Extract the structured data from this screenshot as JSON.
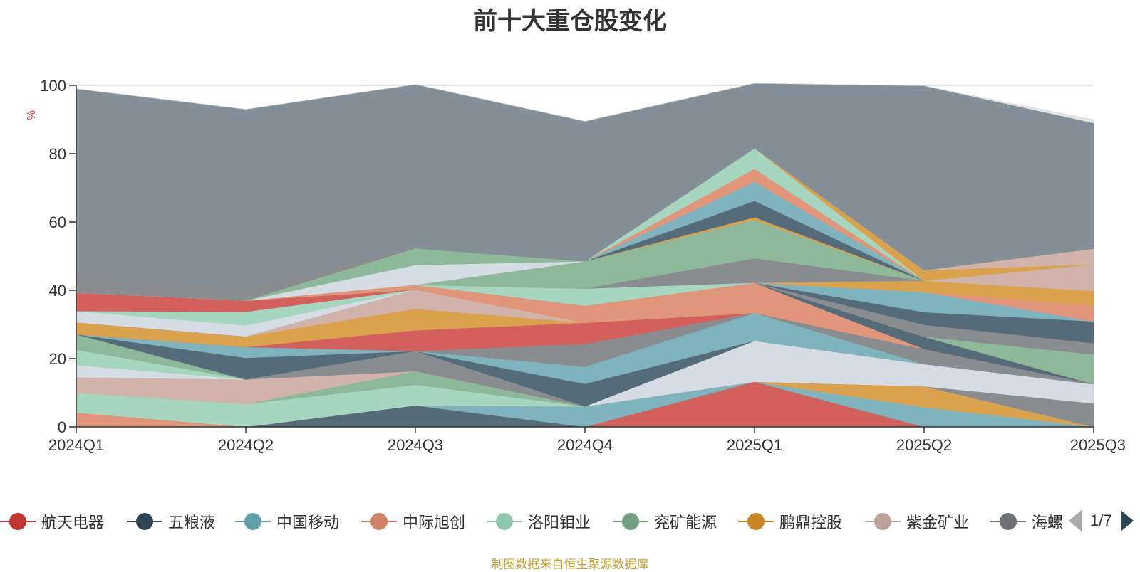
{
  "chart_data": {
    "type": "area",
    "stacked": true,
    "title": "前十大重仓股变化",
    "ylabel": "%",
    "xlabel": "",
    "ylim": [
      0,
      100
    ],
    "yticks": [
      "0",
      "20",
      "40",
      "60",
      "80",
      "100"
    ],
    "categories": [
      "2024Q1",
      "2024Q2",
      "2024Q3",
      "2024Q4",
      "2025Q1",
      "2025Q2",
      "2025Q3"
    ],
    "grid": true,
    "legend_position": "bottom",
    "series": [
      {
        "name": "航天电器",
        "color": "#d4605e",
        "values": [
          0,
          0,
          0,
          0,
          13.2,
          0,
          0
        ]
      },
      {
        "name": "五粮液",
        "color": "#566b7a",
        "values": [
          0,
          0,
          6.3,
          0,
          0,
          0,
          0
        ]
      },
      {
        "name": "中国移动",
        "color": "#7fb3bd",
        "values": [
          0,
          0,
          0,
          6.0,
          0,
          5.8,
          0
        ]
      },
      {
        "name": "中际旭创",
        "color": "#e1967c",
        "values": [
          4.2,
          0,
          0,
          0,
          0,
          0,
          0
        ]
      },
      {
        "name": "洛阳钼业",
        "color": "#a6d6c0",
        "values": [
          5.8,
          6.7,
          6.0,
          0,
          0,
          0,
          0
        ]
      },
      {
        "name": "兖矿能源",
        "color": "#8db89a",
        "values": [
          0,
          0,
          4.0,
          0,
          0,
          0,
          0
        ]
      },
      {
        "name": "鹏鼎控股",
        "color": "#dba24e",
        "values": [
          0,
          0,
          0,
          0,
          0,
          6.1,
          0
        ]
      },
      {
        "name": "紫金矿业",
        "color": "#d2b3ab",
        "values": [
          4.5,
          7.2,
          0,
          0,
          0,
          0,
          0
        ]
      },
      {
        "name": "海螺水泥",
        "color": "#8a8d90",
        "values": [
          0,
          0,
          5.9,
          0,
          0,
          0,
          6.9
        ]
      },
      {
        "name": "",
        "color": "#d6dce3",
        "values": [
          3.6,
          0,
          0,
          0,
          12.0,
          6.5,
          5.6
        ]
      },
      {
        "name": "",
        "color": "#a6d6c0",
        "values": [
          4.5,
          0,
          0,
          0,
          0,
          0,
          0
        ]
      },
      {
        "name": "",
        "color": "#8db89a",
        "values": [
          4.5,
          0,
          0,
          0,
          0,
          0,
          0
        ]
      },
      {
        "name": "",
        "color": "#566b7a",
        "values": [
          0,
          6.3,
          0,
          6.6,
          0,
          0,
          0
        ]
      },
      {
        "name": "",
        "color": "#7fb3bd",
        "values": [
          0,
          3.2,
          0,
          5.0,
          8.2,
          0,
          0
        ]
      },
      {
        "name": "",
        "color": "#8a8d90",
        "values": [
          0,
          0,
          0,
          6.7,
          0,
          4.4,
          0
        ]
      },
      {
        "name": "",
        "color": "#d4605e",
        "values": [
          0,
          0,
          6.1,
          6.2,
          0,
          0,
          0
        ]
      },
      {
        "name": "",
        "color": "#dba24e",
        "values": [
          3.5,
          3.1,
          6.3,
          0,
          0,
          0,
          0
        ]
      },
      {
        "name": "",
        "color": "#d2b3ab",
        "values": [
          0,
          0,
          5.6,
          0,
          0,
          0,
          0
        ]
      },
      {
        "name": "",
        "color": "#e1967c",
        "values": [
          0,
          0,
          0,
          0,
          8.8,
          0,
          0
        ]
      },
      {
        "name": "",
        "color": "#566b7a",
        "values": [
          0,
          0,
          0,
          0,
          0,
          3.6,
          0
        ]
      },
      {
        "name": "",
        "color": "#d6dce3",
        "values": [
          3.3,
          3.2,
          0,
          0,
          0,
          0,
          0
        ]
      },
      {
        "name": "",
        "color": "#a6d6c0",
        "values": [
          0,
          4.0,
          0,
          0,
          0,
          0,
          0
        ]
      },
      {
        "name": "",
        "color": "#d4605e",
        "values": [
          5.4,
          3.3,
          0,
          0,
          0,
          0,
          0
        ]
      },
      {
        "name": "",
        "color": "#8db89a",
        "values": [
          0,
          0,
          0,
          0,
          0,
          0,
          8.7
        ]
      },
      {
        "name": "",
        "color": "#8a8d90",
        "values": [
          0,
          0,
          0,
          0,
          0,
          3.5,
          3.3
        ]
      },
      {
        "name": "",
        "color": "#566b7a",
        "values": [
          0,
          0,
          0,
          0,
          0,
          3.7,
          6.4
        ]
      },
      {
        "name": "",
        "color": "#7fb3bd",
        "values": [
          0,
          0,
          0,
          0,
          0,
          5.9,
          0
        ]
      },
      {
        "name": "",
        "color": "#e1967c",
        "values": [
          0,
          0,
          0,
          0,
          0,
          0,
          4.7
        ]
      },
      {
        "name": "",
        "color": "#e1967c",
        "values": [
          0,
          0,
          0,
          0,
          0,
          0,
          0
        ]
      },
      {
        "name": "",
        "color": "#dba24e",
        "values": [
          0,
          0,
          0,
          0,
          0,
          3.3,
          4.2
        ]
      },
      {
        "name": "",
        "color": "#d2b3ab",
        "values": [
          0,
          0,
          0,
          0,
          0,
          0,
          7.8
        ]
      },
      {
        "name": "",
        "color": "#e1967c",
        "values": [
          0,
          0,
          1.4,
          5.0,
          0,
          0,
          0
        ]
      },
      {
        "name": "",
        "color": "#a6d6c0",
        "values": [
          0,
          0,
          0,
          5.0,
          0,
          0,
          0
        ]
      },
      {
        "name": "",
        "color": "#8a8d90",
        "values": [
          0,
          0,
          0,
          0,
          7.2,
          0,
          0
        ]
      },
      {
        "name": "",
        "color": "#8db89a",
        "values": [
          0,
          0,
          0,
          8.0,
          11.2,
          0,
          0
        ]
      },
      {
        "name": "",
        "color": "#d6dce3",
        "values": [
          0,
          0,
          5.8,
          0,
          0,
          0,
          0
        ]
      },
      {
        "name": "",
        "color": "#8db89a",
        "values": [
          0,
          0,
          4.9,
          0,
          0,
          0,
          0
        ]
      },
      {
        "name": "",
        "color": "#dba24e",
        "values": [
          0,
          0,
          0,
          0,
          0.8,
          0,
          0
        ]
      },
      {
        "name": "",
        "color": "#566b7a",
        "values": [
          0,
          0,
          0,
          0,
          4.8,
          0,
          0
        ]
      },
      {
        "name": "",
        "color": "#7fb3bd",
        "values": [
          0,
          0,
          0,
          0,
          5.6,
          0,
          0
        ]
      },
      {
        "name": "",
        "color": "#e1967c",
        "values": [
          0,
          0,
          0,
          0,
          3.8,
          0,
          0
        ]
      },
      {
        "name": "",
        "color": "#a6d6c0",
        "values": [
          0,
          0,
          0,
          0,
          6.0,
          0,
          0
        ]
      },
      {
        "name": "",
        "color": "#dba24e",
        "values": [
          0,
          0,
          0,
          0,
          0,
          3.1,
          0
        ]
      },
      {
        "name": "",
        "color": "#d2b3ab",
        "values": [
          0,
          0,
          0,
          0,
          0,
          0,
          4.6
        ]
      },
      {
        "name": "",
        "color": "#8a8d90",
        "values": [
          5.2,
          4.0,
          0,
          0,
          0,
          0,
          0
        ]
      },
      {
        "name": "",
        "color": "#848f98",
        "values": [
          54.5,
          52.0,
          48.0,
          41.0,
          19.0,
          54.0,
          36.8
        ]
      },
      {
        "name": "",
        "color": "#e4e4e4",
        "values": [
          0,
          0,
          0,
          0,
          0,
          0,
          1.0
        ]
      }
    ]
  },
  "legend": {
    "items": [
      {
        "label": "航天电器",
        "color": "#c23531"
      },
      {
        "label": "五粮液",
        "color": "#2f4554"
      },
      {
        "label": "中国移动",
        "color": "#61a0a8"
      },
      {
        "label": "中际旭创",
        "color": "#d48265"
      },
      {
        "label": "洛阳钼业",
        "color": "#91c7ae"
      },
      {
        "label": "兖矿能源",
        "color": "#749f83"
      },
      {
        "label": "鹏鼎控股",
        "color": "#ca8622"
      },
      {
        "label": "紫金矿业",
        "color": "#bda29a"
      },
      {
        "label": "海螺水泥",
        "color": "#6e7074"
      }
    ],
    "page_text": "1/7",
    "prev_icon": "triangle-left-icon",
    "next_icon": "triangle-right-icon"
  },
  "source_note": "制图数据来自恒生聚源数据库"
}
